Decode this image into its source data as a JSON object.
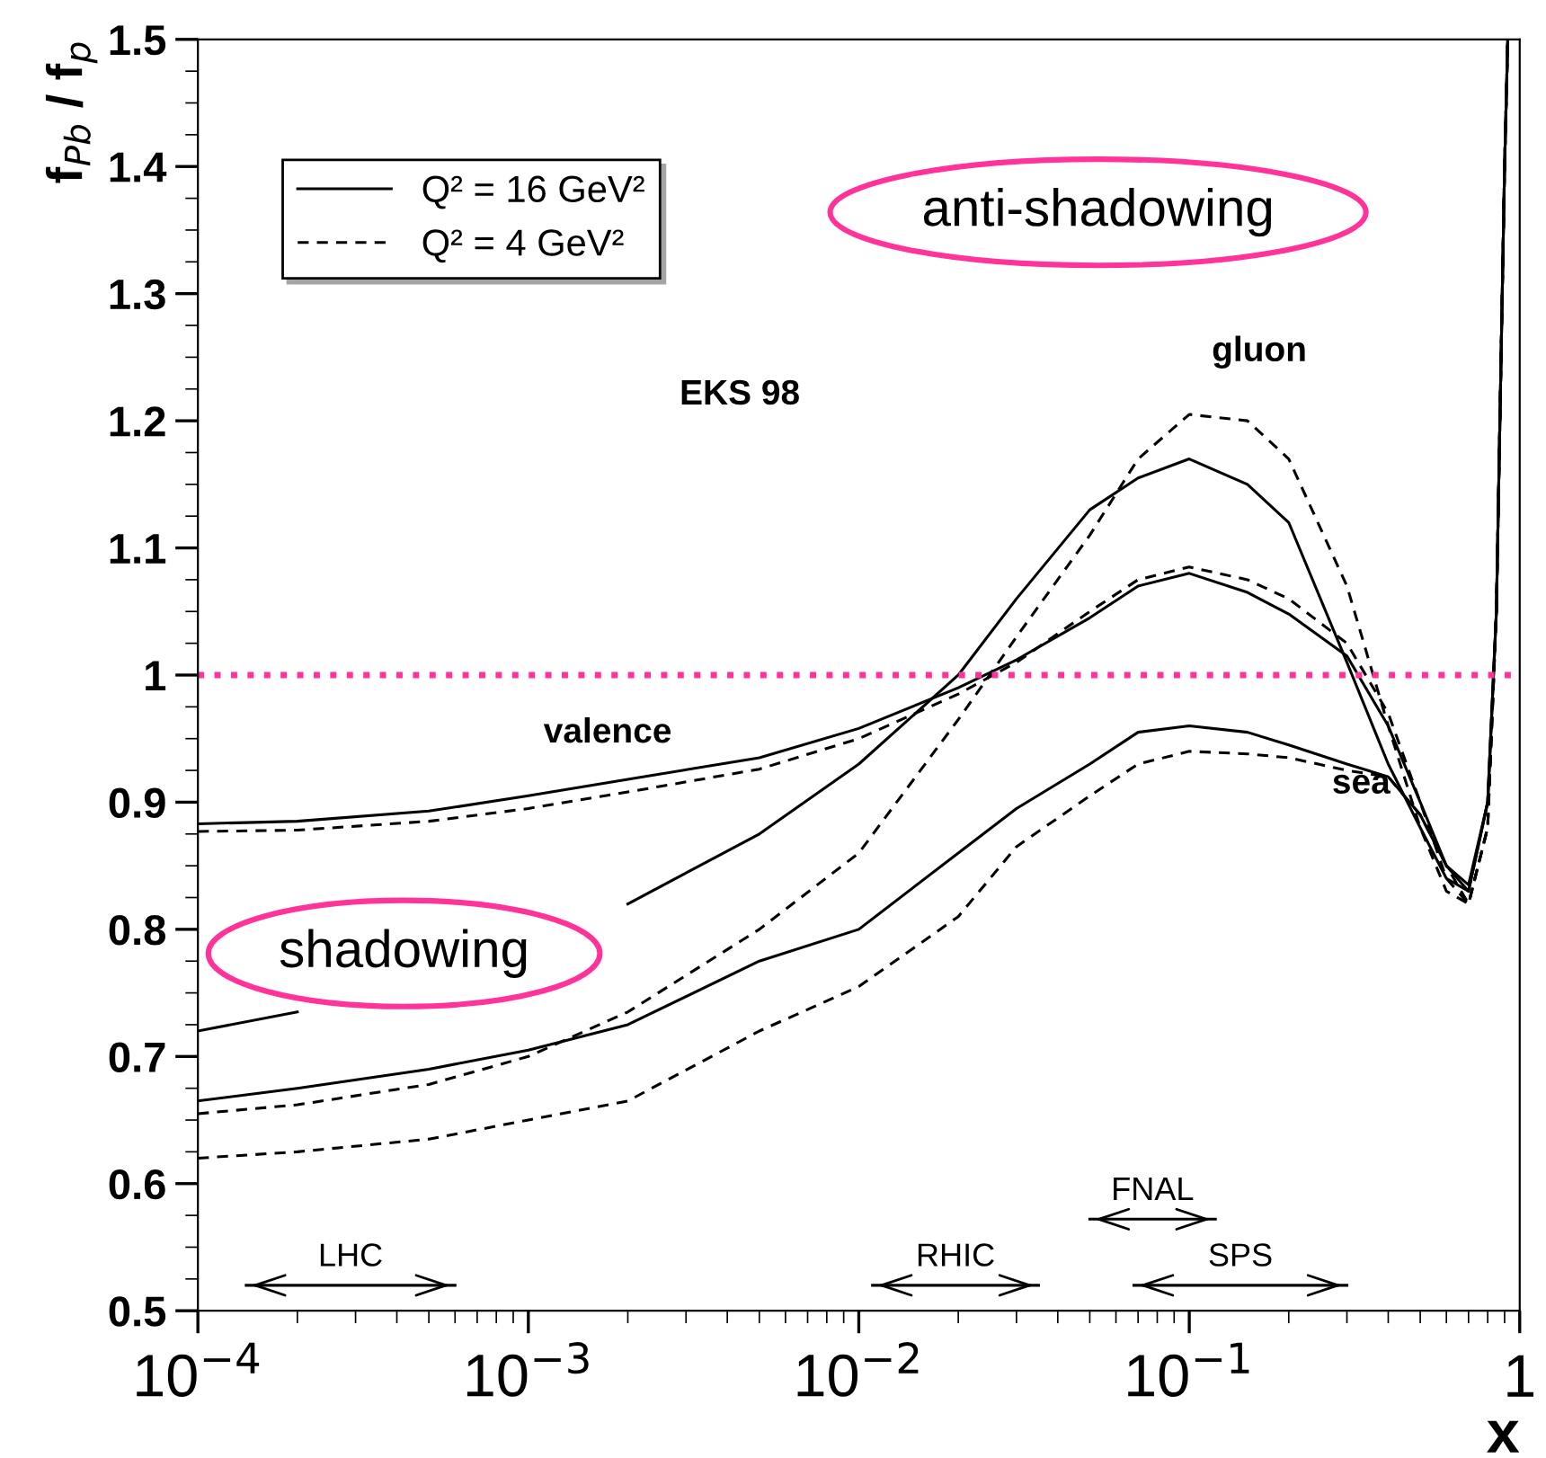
{
  "chart_data": {
    "type": "line",
    "xlabel": "x",
    "ylabel": "f$_{Pb}$ / f$_{p}$",
    "log": "x",
    "xlim": [
      0.0001,
      1
    ],
    "xticks": [
      {
        "value": 0.0001,
        "label": "10$^{−4}$"
      },
      {
        "value": 0.001,
        "label": "10$^{−3}$"
      },
      {
        "value": 0.01,
        "label": "10$^{−2}$"
      },
      {
        "value": 0.1,
        "label": "10$^{−1}$"
      },
      1
    ],
    "ylim": [
      0.5,
      1.5
    ],
    "yticks": [
      0.5,
      0.6,
      0.7,
      0.8,
      0.9,
      1,
      1.1,
      1.2,
      1.3,
      1.4,
      1.5
    ],
    "x": [
      0.0001,
      0.0002,
      0.0005,
      0.001,
      0.002,
      0.005,
      0.01,
      0.02,
      0.03,
      0.05,
      0.07,
      0.1,
      0.15,
      0.2,
      0.3,
      0.4,
      0.5,
      0.6,
      0.7,
      0.8,
      0.85,
      0.9,
      0.92
    ],
    "series": [
      {
        "name": "Q² = 16 GeV²",
        "color": "#000000",
        "line_style": "solid",
        "values": [
          0.883,
          0.885,
          0.893,
          0.905,
          0.918,
          0.935,
          0.958,
          0.99,
          1.012,
          1.045,
          1.07,
          1.08,
          1.065,
          1.048,
          1.015,
          0.96,
          0.9,
          0.85,
          0.83,
          0.9,
          1.05,
          1.4,
          1.5
        ]
      },
      {
        "name": "Q² = 4 GeV²",
        "color": "#000000",
        "line_style": "dashed",
        "values": [
          0.877,
          0.878,
          0.885,
          0.895,
          0.908,
          0.926,
          0.95,
          0.985,
          1.01,
          1.05,
          1.075,
          1.085,
          1.075,
          1.06,
          1.025,
          0.97,
          0.9,
          0.84,
          0.82,
          0.88,
          1.05,
          1.4,
          1.5
        ]
      },
      {
        "color": "#000000",
        "line_style": "solid",
        "values": [
          0.72,
          0.735,
          null,
          null,
          0.82,
          0.875,
          0.93,
          1.0,
          1.06,
          1.13,
          1.155,
          1.17,
          1.15,
          1.12,
          1.01,
          0.93,
          0.88,
          0.84,
          0.83,
          0.9,
          1.05,
          1.4,
          1.5
        ]
      },
      {
        "color": "#000000",
        "line_style": "dashed",
        "values": [
          0.655,
          0.662,
          0.678,
          0.7,
          0.735,
          0.8,
          0.86,
          0.965,
          1.03,
          1.11,
          1.17,
          1.205,
          1.2,
          1.17,
          1.07,
          0.96,
          0.88,
          0.83,
          0.82,
          0.88,
          1.05,
          1.4,
          1.5
        ]
      },
      {
        "color": "#000000",
        "line_style": "solid",
        "values": [
          0.665,
          0.675,
          0.69,
          0.705,
          0.725,
          0.775,
          0.8,
          0.86,
          0.895,
          0.93,
          0.955,
          0.96,
          0.955,
          0.945,
          0.93,
          0.92,
          0.89,
          0.85,
          0.835,
          0.9,
          1.05,
          1.4,
          1.5
        ]
      },
      {
        "color": "#000000",
        "line_style": "dashed",
        "values": [
          0.62,
          0.625,
          0.635,
          0.65,
          0.665,
          0.72,
          0.755,
          0.81,
          0.865,
          0.905,
          0.93,
          0.94,
          0.938,
          0.935,
          0.925,
          0.92,
          0.89,
          0.85,
          0.82,
          0.88,
          1.05,
          1.4,
          1.5
        ]
      },
      {
        "name": "LHC",
        "color": "#000000",
        "line_style": "solid",
        "x": [
          0.00014,
          0.0006
        ],
        "values": [
          0.52,
          0.52
        ]
      },
      {
        "name": "RHIC",
        "color": "#000000",
        "line_style": "solid",
        "x": [
          0.011,
          0.035
        ],
        "values": [
          0.52,
          0.52
        ]
      },
      {
        "name": "FNAL",
        "color": "#000000",
        "line_style": "solid",
        "x": [
          0.05,
          0.12
        ],
        "values": [
          0.572,
          0.572
        ]
      },
      {
        "name": "SPS",
        "color": "#000000",
        "line_style": "solid",
        "x": [
          0.068,
          0.3
        ],
        "values": [
          0.52,
          0.52
        ]
      }
    ],
    "ref_lines": [
      {
        "axis": "y",
        "value": 1,
        "color": "#ff3399",
        "line_style": "dotted"
      }
    ],
    "annotations": [
      "anti-shadowing",
      "shadowing",
      "EKS 98",
      "gluon",
      "valence",
      "sea"
    ],
    "legend": "top left",
    "grid": false
  }
}
